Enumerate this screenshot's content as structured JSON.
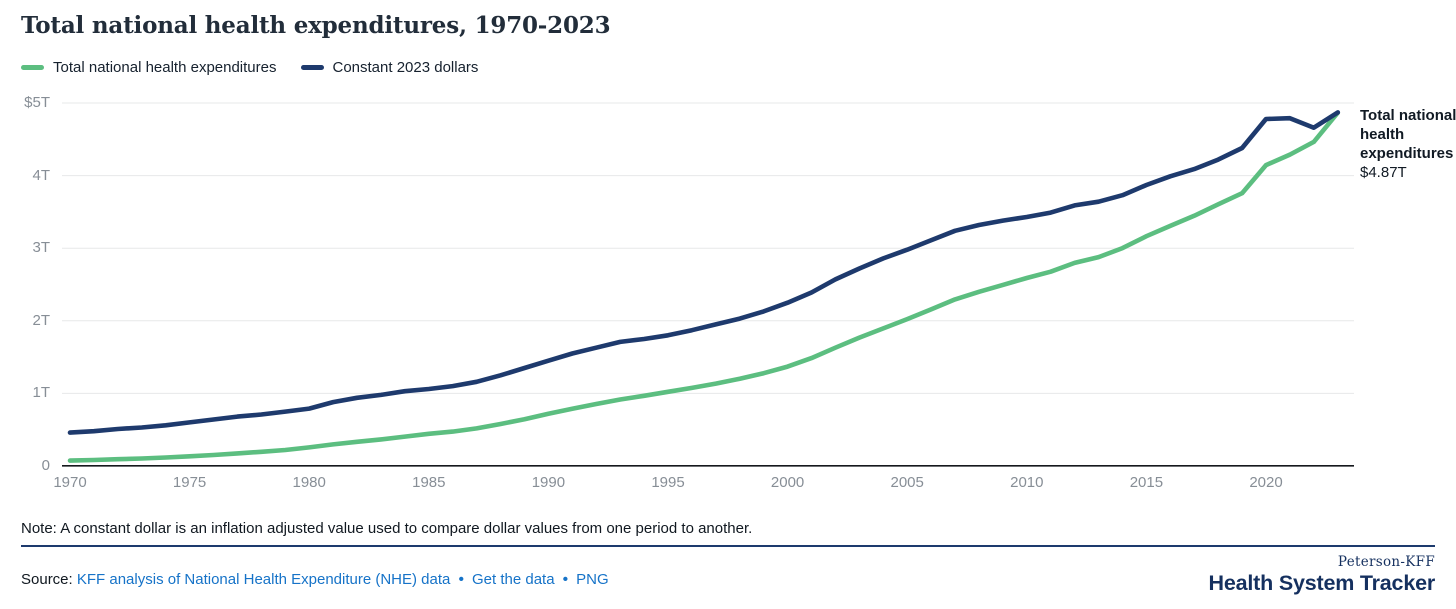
{
  "header": {
    "title": "Total national health expenditures, 1970-2023"
  },
  "legend": {
    "items": [
      {
        "label": "Total national health expenditures",
        "color": "#5cbe80"
      },
      {
        "label": "Constant 2023 dollars",
        "color": "#1e3a6d"
      }
    ]
  },
  "annotation": {
    "label": "Total national health expenditures",
    "value": "$4.87T"
  },
  "note": "Note: A constant dollar is an inflation adjusted value used to compare dollar values from one period to another.",
  "source": {
    "label": "Source:",
    "links": [
      "KFF analysis of National Health Expenditure (NHE) data",
      "Get the data",
      "PNG"
    ],
    "separator": "•"
  },
  "logo": {
    "top": "Peterson-KFF",
    "bottom": "Health System Tracker"
  },
  "chart_data": {
    "type": "line",
    "title": "Total national health expenditures, 1970-2023",
    "xlabel": "",
    "ylabel": "",
    "ylim": [
      0,
      5
    ],
    "grid": true,
    "legend_position": "top-left",
    "x": [
      1970,
      1971,
      1972,
      1973,
      1974,
      1975,
      1976,
      1977,
      1978,
      1979,
      1980,
      1981,
      1982,
      1983,
      1984,
      1985,
      1986,
      1987,
      1988,
      1989,
      1990,
      1991,
      1992,
      1993,
      1994,
      1995,
      1996,
      1997,
      1998,
      1999,
      2000,
      2001,
      2002,
      2003,
      2004,
      2005,
      2006,
      2007,
      2008,
      2009,
      2010,
      2011,
      2012,
      2013,
      2014,
      2015,
      2016,
      2017,
      2018,
      2019,
      2020,
      2021,
      2022,
      2023
    ],
    "series": [
      {
        "name": "Total national health expenditures",
        "color": "#5cbe80",
        "values": [
          0.075,
          0.083,
          0.093,
          0.103,
          0.117,
          0.134,
          0.152,
          0.174,
          0.195,
          0.221,
          0.256,
          0.297,
          0.334,
          0.367,
          0.405,
          0.443,
          0.474,
          0.518,
          0.579,
          0.644,
          0.721,
          0.788,
          0.854,
          0.916,
          0.967,
          1.022,
          1.076,
          1.135,
          1.202,
          1.278,
          1.369,
          1.486,
          1.629,
          1.768,
          1.896,
          2.024,
          2.157,
          2.295,
          2.399,
          2.495,
          2.589,
          2.676,
          2.797,
          2.877,
          3.002,
          3.165,
          3.307,
          3.446,
          3.604,
          3.758,
          4.144,
          4.289,
          4.464,
          4.867
        ]
      },
      {
        "name": "Constant 2023 dollars",
        "color": "#1e3a6d",
        "values": [
          0.46,
          0.48,
          0.51,
          0.53,
          0.56,
          0.6,
          0.64,
          0.68,
          0.71,
          0.75,
          0.79,
          0.88,
          0.94,
          0.98,
          1.03,
          1.06,
          1.1,
          1.16,
          1.25,
          1.35,
          1.45,
          1.55,
          1.63,
          1.71,
          1.75,
          1.8,
          1.87,
          1.95,
          2.03,
          2.13,
          2.25,
          2.39,
          2.57,
          2.72,
          2.86,
          2.98,
          3.11,
          3.24,
          3.32,
          3.38,
          3.43,
          3.49,
          3.59,
          3.64,
          3.73,
          3.87,
          3.99,
          4.09,
          4.22,
          4.38,
          4.78,
          4.79,
          4.66,
          4.87
        ]
      }
    ],
    "yticks": [
      {
        "v": 5,
        "label": "$5T"
      },
      {
        "v": 4,
        "label": "4T"
      },
      {
        "v": 3,
        "label": "3T"
      },
      {
        "v": 2,
        "label": "2T"
      },
      {
        "v": 1,
        "label": "1T"
      },
      {
        "v": 0,
        "label": "0"
      }
    ],
    "xticks": [
      1970,
      1975,
      1980,
      1985,
      1990,
      1995,
      2000,
      2005,
      2010,
      2015,
      2020
    ],
    "end_label": {
      "text": "Total national health expenditures",
      "value": "$4.87T"
    }
  }
}
